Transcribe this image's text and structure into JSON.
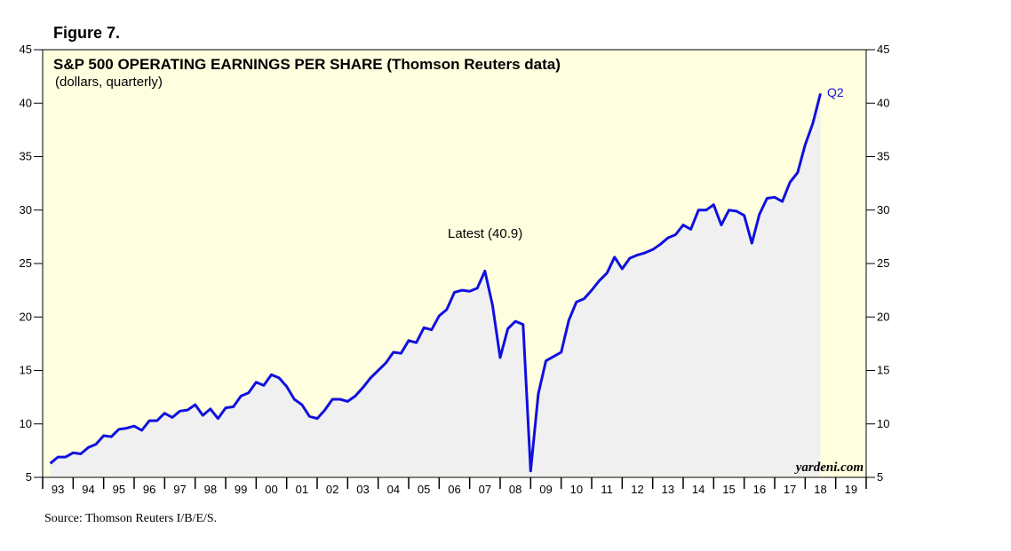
{
  "figure_label": "Figure 7.",
  "source": "Source: Thomson Reuters I/B/E/S.",
  "watermark": "yardeni.com",
  "colors": {
    "plot_background": "#ffffe0",
    "area_fill": "#f0f0f0",
    "line": "#1010e0",
    "text": "#000000"
  },
  "chart_data": {
    "type": "line",
    "title": "S&P 500 OPERATING EARNINGS PER SHARE (Thomson Reuters data)",
    "subtitle": "(dollars, quarterly)",
    "annotations": {
      "latest": "Latest (40.9)",
      "end_label": "Q2"
    },
    "x_unit": "year",
    "xlim": [
      1993,
      2020
    ],
    "ylim": [
      5,
      45
    ],
    "y_ticks": [
      5,
      10,
      15,
      20,
      25,
      30,
      35,
      40,
      45
    ],
    "x_tick_labels": [
      "93",
      "94",
      "95",
      "96",
      "97",
      "98",
      "99",
      "00",
      "01",
      "02",
      "03",
      "04",
      "05",
      "06",
      "07",
      "08",
      "09",
      "10",
      "11",
      "12",
      "13",
      "14",
      "15",
      "16",
      "17",
      "18",
      "19"
    ],
    "grid": false,
    "series": [
      {
        "values": [
          [
            1993.25,
            6.3
          ],
          [
            1993.5,
            6.9
          ],
          [
            1993.75,
            6.9
          ],
          [
            1994.0,
            7.3
          ],
          [
            1994.25,
            7.2
          ],
          [
            1994.5,
            7.8
          ],
          [
            1994.75,
            8.1
          ],
          [
            1995.0,
            8.9
          ],
          [
            1995.25,
            8.8
          ],
          [
            1995.5,
            9.5
          ],
          [
            1995.75,
            9.6
          ],
          [
            1996.0,
            9.8
          ],
          [
            1996.25,
            9.4
          ],
          [
            1996.5,
            10.3
          ],
          [
            1996.75,
            10.3
          ],
          [
            1997.0,
            11.0
          ],
          [
            1997.25,
            10.6
          ],
          [
            1997.5,
            11.2
          ],
          [
            1997.75,
            11.3
          ],
          [
            1998.0,
            11.8
          ],
          [
            1998.25,
            10.8
          ],
          [
            1998.5,
            11.4
          ],
          [
            1998.75,
            10.5
          ],
          [
            1999.0,
            11.5
          ],
          [
            1999.25,
            11.6
          ],
          [
            1999.5,
            12.6
          ],
          [
            1999.75,
            12.9
          ],
          [
            2000.0,
            13.9
          ],
          [
            2000.25,
            13.6
          ],
          [
            2000.5,
            14.6
          ],
          [
            2000.75,
            14.3
          ],
          [
            2001.0,
            13.5
          ],
          [
            2001.25,
            12.3
          ],
          [
            2001.5,
            11.8
          ],
          [
            2001.75,
            10.7
          ],
          [
            2002.0,
            10.5
          ],
          [
            2002.25,
            11.3
          ],
          [
            2002.5,
            12.3
          ],
          [
            2002.75,
            12.3
          ],
          [
            2003.0,
            12.1
          ],
          [
            2003.25,
            12.6
          ],
          [
            2003.5,
            13.4
          ],
          [
            2003.75,
            14.3
          ],
          [
            2004.0,
            15.0
          ],
          [
            2004.25,
            15.7
          ],
          [
            2004.5,
            16.7
          ],
          [
            2004.75,
            16.6
          ],
          [
            2005.0,
            17.8
          ],
          [
            2005.25,
            17.6
          ],
          [
            2005.5,
            19.0
          ],
          [
            2005.75,
            18.8
          ],
          [
            2006.0,
            20.1
          ],
          [
            2006.25,
            20.7
          ],
          [
            2006.5,
            22.3
          ],
          [
            2006.75,
            22.5
          ],
          [
            2007.0,
            22.4
          ],
          [
            2007.25,
            22.7
          ],
          [
            2007.5,
            24.3
          ],
          [
            2007.75,
            21.1
          ],
          [
            2008.0,
            16.2
          ],
          [
            2008.25,
            18.9
          ],
          [
            2008.5,
            19.6
          ],
          [
            2008.75,
            19.3
          ],
          [
            2009.0,
            5.6
          ],
          [
            2009.25,
            12.8
          ],
          [
            2009.5,
            15.9
          ],
          [
            2009.75,
            16.3
          ],
          [
            2010.0,
            16.7
          ],
          [
            2010.25,
            19.7
          ],
          [
            2010.5,
            21.4
          ],
          [
            2010.75,
            21.7
          ],
          [
            2011.0,
            22.5
          ],
          [
            2011.25,
            23.4
          ],
          [
            2011.5,
            24.1
          ],
          [
            2011.75,
            25.6
          ],
          [
            2012.0,
            24.5
          ],
          [
            2012.25,
            25.5
          ],
          [
            2012.5,
            25.8
          ],
          [
            2012.75,
            26.0
          ],
          [
            2013.0,
            26.3
          ],
          [
            2013.25,
            26.8
          ],
          [
            2013.5,
            27.4
          ],
          [
            2013.75,
            27.7
          ],
          [
            2014.0,
            28.6
          ],
          [
            2014.25,
            28.2
          ],
          [
            2014.5,
            30.0
          ],
          [
            2014.75,
            30.0
          ],
          [
            2015.0,
            30.5
          ],
          [
            2015.25,
            28.6
          ],
          [
            2015.5,
            30.0
          ],
          [
            2015.75,
            29.9
          ],
          [
            2016.0,
            29.5
          ],
          [
            2016.25,
            26.9
          ],
          [
            2016.5,
            29.6
          ],
          [
            2016.75,
            31.1
          ],
          [
            2017.0,
            31.2
          ],
          [
            2017.25,
            30.8
          ],
          [
            2017.5,
            32.6
          ],
          [
            2017.75,
            33.5
          ],
          [
            2018.0,
            36.1
          ],
          [
            2018.25,
            38.1
          ],
          [
            2018.5,
            40.9
          ]
        ]
      }
    ]
  }
}
